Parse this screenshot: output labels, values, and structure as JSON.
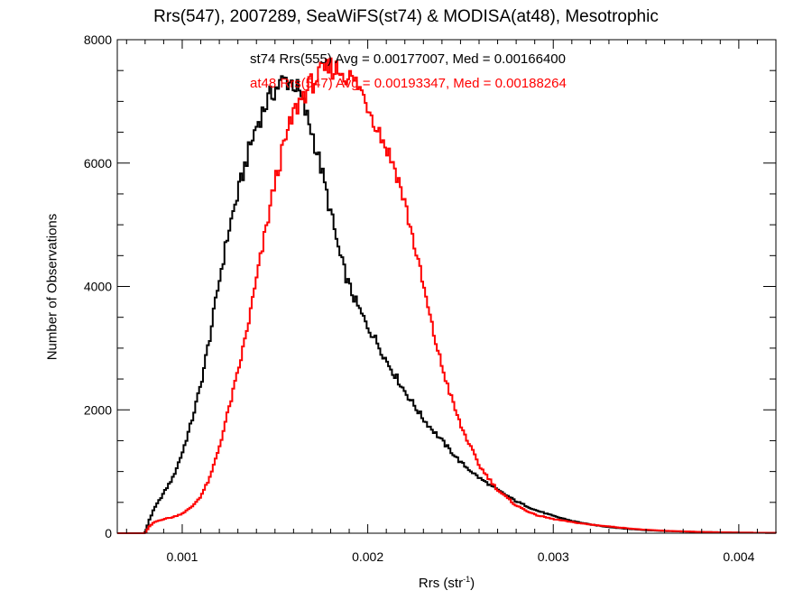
{
  "chart_data": {
    "type": "line",
    "title": "Rrs(547), 2007289, SeaWiFS(st74) & MODISA(at48), Mesotrophic",
    "xlabel_main": "Rrs (str",
    "xlabel_sup": "-1",
    "xlabel_close": ")",
    "ylabel": "Number of Observations",
    "xlim": [
      0.00065,
      0.0042
    ],
    "ylim": [
      0,
      8000
    ],
    "x_ticks": [
      {
        "value": 0.001,
        "label": "0.001"
      },
      {
        "value": 0.002,
        "label": "0.002"
      },
      {
        "value": 0.003,
        "label": "0.003"
      },
      {
        "value": 0.004,
        "label": "0.004"
      }
    ],
    "y_ticks": [
      {
        "value": 0,
        "label": "0"
      },
      {
        "value": 2000,
        "label": "2000"
      },
      {
        "value": 4000,
        "label": "4000"
      },
      {
        "value": 6000,
        "label": "6000"
      },
      {
        "value": 8000,
        "label": "8000"
      }
    ],
    "annotations": [
      {
        "text": "st74 Rrs(555) Avg = 0.00177007, Med = 0.00166400",
        "color": "#000000"
      },
      {
        "text": "at48 Rrs(547) Avg = 0.00193347, Med = 0.00188264",
        "color": "#ff0000"
      }
    ],
    "series": [
      {
        "color": "#000000",
        "x": [
          0.00065,
          0.0008,
          0.00082,
          0.00085,
          0.0009,
          0.00095,
          0.001,
          0.00105,
          0.0011,
          0.00115,
          0.0012,
          0.00125,
          0.0013,
          0.00135,
          0.0014,
          0.00145,
          0.0015,
          0.00155,
          0.0016,
          0.00163,
          0.00165,
          0.0017,
          0.00175,
          0.0018,
          0.00185,
          0.0019,
          0.00195,
          0.002,
          0.00205,
          0.0021,
          0.0022,
          0.0023,
          0.0024,
          0.0025,
          0.0026,
          0.0027,
          0.0028,
          0.0029,
          0.003,
          0.0031,
          0.0032,
          0.0033,
          0.0034,
          0.0035,
          0.0036,
          0.0038,
          0.004,
          0.0042
        ],
        "y": [
          0,
          0,
          200,
          400,
          650,
          900,
          1300,
          1800,
          2400,
          3200,
          4100,
          4900,
          5500,
          6100,
          6600,
          6950,
          7200,
          7350,
          7300,
          7150,
          6950,
          6500,
          5900,
          5200,
          4500,
          4000,
          3650,
          3350,
          3100,
          2800,
          2300,
          1850,
          1500,
          1150,
          900,
          700,
          520,
          380,
          280,
          200,
          140,
          100,
          70,
          50,
          35,
          20,
          10,
          5
        ]
      },
      {
        "color": "#ff0000",
        "x": [
          0.00065,
          0.0008,
          0.00082,
          0.00085,
          0.0009,
          0.00095,
          0.001,
          0.00105,
          0.0011,
          0.00115,
          0.0012,
          0.00125,
          0.0013,
          0.00135,
          0.0014,
          0.00145,
          0.0015,
          0.00155,
          0.0016,
          0.00165,
          0.0017,
          0.00175,
          0.0018,
          0.00185,
          0.0019,
          0.00195,
          0.002,
          0.00205,
          0.0021,
          0.00215,
          0.0022,
          0.00225,
          0.0023,
          0.00235,
          0.0024,
          0.00245,
          0.0025,
          0.0026,
          0.0027,
          0.0028,
          0.0029,
          0.003,
          0.0031,
          0.0032,
          0.0033,
          0.0034,
          0.0035,
          0.0036,
          0.0038,
          0.004,
          0.0042
        ],
        "y": [
          0,
          0,
          100,
          180,
          230,
          260,
          320,
          420,
          600,
          900,
          1400,
          2000,
          2600,
          3300,
          4100,
          4900,
          5700,
          6300,
          6800,
          7100,
          7300,
          7450,
          7550,
          7500,
          7400,
          7250,
          6950,
          6600,
          6250,
          5900,
          5350,
          4700,
          4000,
          3300,
          2700,
          2200,
          1750,
          1100,
          700,
          450,
          300,
          230,
          180,
          140,
          110,
          80,
          55,
          40,
          20,
          10,
          5
        ]
      }
    ]
  }
}
